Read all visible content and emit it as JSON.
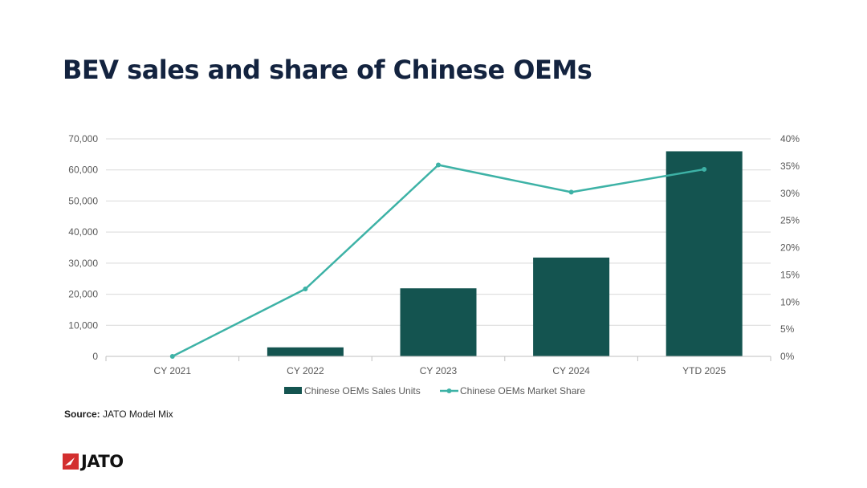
{
  "title": "BEV sales and share of Chinese OEMs",
  "source": {
    "label": "Source:",
    "text": "JATO Model Mix"
  },
  "logo": {
    "text": "JATO"
  },
  "colors": {
    "title": "#13233f",
    "bar": "#145450",
    "line": "#3db2a6",
    "grid": "#d9d9d9",
    "axis_text": "#595959",
    "logo_red": "#d32f2f"
  },
  "chart_data": {
    "type": "bar",
    "categories": [
      "CY 2021",
      "CY 2022",
      "CY 2023",
      "CY 2024",
      "YTD 2025"
    ],
    "series": [
      {
        "name": "Chinese OEMs Sales Units",
        "type": "bar",
        "axis": "left",
        "values": [
          0,
          2900,
          21900,
          31800,
          66000
        ]
      },
      {
        "name": "Chinese OEMs Market Share",
        "type": "line",
        "axis": "right",
        "values": [
          0,
          12.4,
          35.2,
          30.2,
          34.4
        ]
      }
    ],
    "y_left": {
      "ylim": [
        0,
        70000
      ],
      "ticks": [
        "0",
        "10,000",
        "20,000",
        "30,000",
        "40,000",
        "50,000",
        "60,000",
        "70,000"
      ]
    },
    "y_right": {
      "ylim": [
        0,
        40
      ],
      "ticks": [
        "0%",
        "5%",
        "10%",
        "15%",
        "20%",
        "25%",
        "30%",
        "35%",
        "40%"
      ]
    },
    "grid": true,
    "legend_position": "bottom",
    "xlabel": "",
    "ylabel": ""
  }
}
